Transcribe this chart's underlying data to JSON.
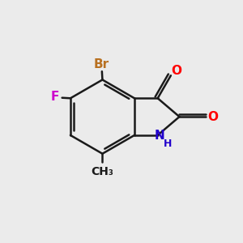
{
  "bg_color": "#ebebeb",
  "bond_color": "#1a1a1a",
  "atom_colors": {
    "Br": "#b87020",
    "F": "#cc00cc",
    "O": "#ff0000",
    "N": "#2200cc",
    "H": "#2200cc"
  },
  "line_width": 1.8,
  "font_size_atoms": 11,
  "font_size_small": 9
}
